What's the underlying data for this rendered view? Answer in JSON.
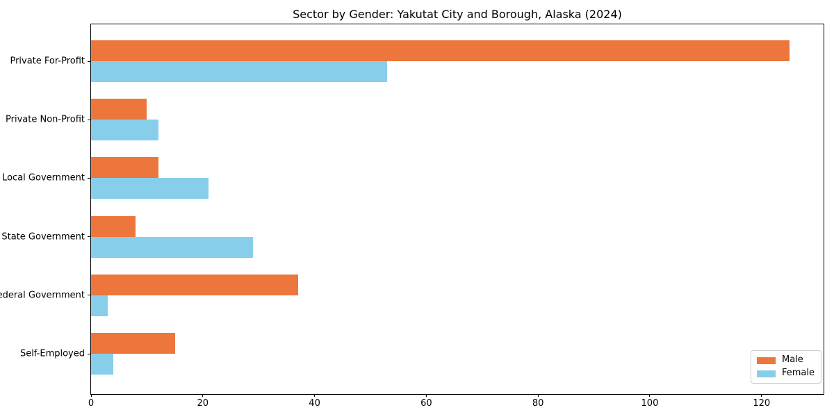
{
  "chart_data": {
    "type": "bar",
    "orientation": "horizontal",
    "title": "Sector by Gender: Yakutat City and Borough, Alaska (2024)",
    "categories": [
      "Private For-Profit",
      "Private Non-Profit",
      "Local Government",
      "State Government",
      "Federal Government",
      "Self-Employed"
    ],
    "series": [
      {
        "name": "Male",
        "color": "#ec763c",
        "values": [
          125,
          10,
          12,
          8,
          37,
          15
        ]
      },
      {
        "name": "Female",
        "color": "#87ceeb",
        "values": [
          53,
          12,
          21,
          29,
          3,
          4
        ]
      }
    ],
    "xlabel": "",
    "ylabel": "",
    "x_ticks": [
      0,
      20,
      40,
      60,
      80,
      100,
      120
    ],
    "xlim": [
      0,
      131.1
    ],
    "grid": false,
    "background_color": "#ffffff",
    "axis_color": "#000000",
    "legend": {
      "position": "lower right",
      "entries": [
        "Male",
        "Female"
      ]
    }
  }
}
